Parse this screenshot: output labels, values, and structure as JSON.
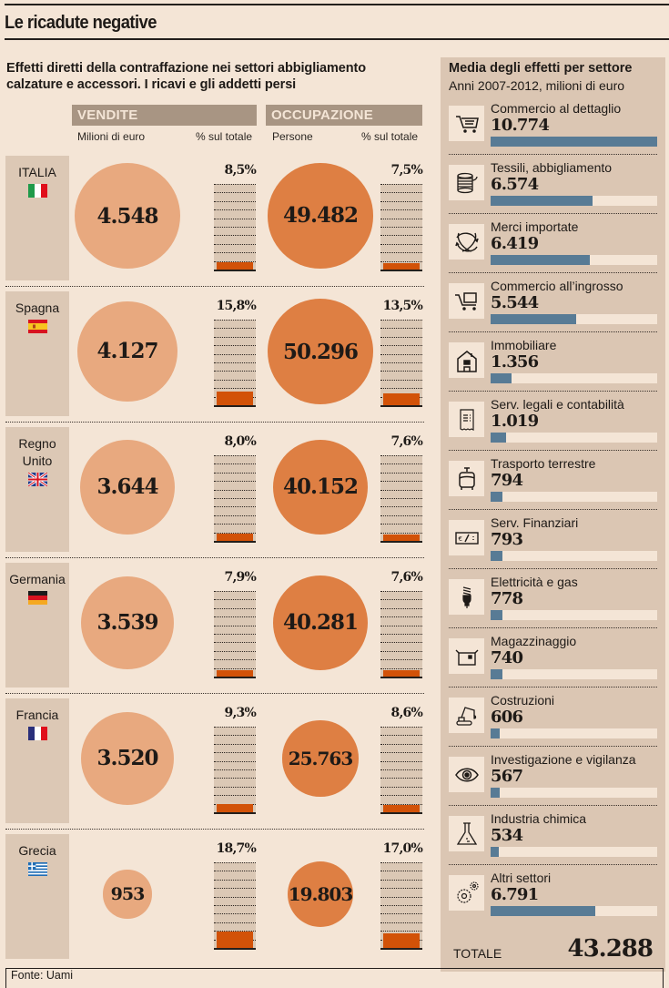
{
  "header": {
    "title": "Le ricadute negative",
    "subtitle": "Effetti diretti della contraffazione nei settori abbigliamento calzature e accessori. I ricavi e gli addetti persi"
  },
  "columns": {
    "sales_header": "VENDITE",
    "jobs_header": "OCCUPAZIONE",
    "sales_unit": "Milioni di euro",
    "sales_pct": "% sul totale",
    "jobs_unit": "Persone",
    "jobs_pct": "% sul totale"
  },
  "colors": {
    "background": "#f4e5d6",
    "panel": "#dbc6b3",
    "header_band": "#a89583",
    "sales_circle": "#e8a97f",
    "jobs_circle": "#de7f43",
    "pct_fill": "#d25208",
    "sector_bar": "#587b95"
  },
  "chart_data": [
    {
      "type": "bubble-table",
      "title": "Effetti diretti della contraffazione nei settori abbigliamento calzature e accessori. I ricavi e gli addetti persi",
      "countries": [
        {
          "name": "ITALIA",
          "flag": "italy-flag",
          "sales": 4548,
          "sales_label": "4.548",
          "sales_pct": 8.5,
          "sales_pct_label": "8,5%",
          "jobs": 49482,
          "jobs_label": "49.482",
          "jobs_pct": 7.5,
          "jobs_pct_label": "7,5%"
        },
        {
          "name": "Spagna",
          "flag": "spain-flag",
          "sales": 4127,
          "sales_label": "4.127",
          "sales_pct": 15.8,
          "sales_pct_label": "15,8%",
          "jobs": 50296,
          "jobs_label": "50.296",
          "jobs_pct": 13.5,
          "jobs_pct_label": "13,5%"
        },
        {
          "name": "Regno Unito",
          "flag": "uk-flag",
          "sales": 3644,
          "sales_label": "3.644",
          "sales_pct": 8.0,
          "sales_pct_label": "8,0%",
          "jobs": 40152,
          "jobs_label": "40.152",
          "jobs_pct": 7.6,
          "jobs_pct_label": "7,6%"
        },
        {
          "name": "Germania",
          "flag": "germany-flag",
          "sales": 3539,
          "sales_label": "3.539",
          "sales_pct": 7.9,
          "sales_pct_label": "7,9%",
          "jobs": 40281,
          "jobs_label": "40.281",
          "jobs_pct": 7.6,
          "jobs_pct_label": "7,6%"
        },
        {
          "name": "Francia",
          "flag": "france-flag",
          "sales": 3520,
          "sales_label": "3.520",
          "sales_pct": 9.3,
          "sales_pct_label": "9,3%",
          "jobs": 25763,
          "jobs_label": "25.763",
          "jobs_pct": 8.6,
          "jobs_pct_label": "8,6%"
        },
        {
          "name": "Grecia",
          "flag": "greece-flag",
          "sales": 953,
          "sales_label": "953",
          "sales_pct": 18.7,
          "sales_pct_label": "18,7%",
          "jobs": 19803,
          "jobs_label": "19.803",
          "jobs_pct": 17.0,
          "jobs_pct_label": "17,0%"
        }
      ],
      "pct_scale_max": 100
    },
    {
      "type": "bar",
      "orientation": "horizontal",
      "title": "Media degli effetti per settore",
      "subtitle": "Anni 2007-2012, milioni di euro",
      "categories": [
        "Commercio al dettaglio",
        "Tessili, abbigliamento",
        "Merci importate",
        "Commercio all’ingrosso",
        "Immobiliare",
        "Serv. legali e contabilità",
        "Trasporto terrestre",
        "Serv. Finanziari",
        "Elettricità e gas",
        "Magazzinaggio",
        "Costruzioni",
        "Investigazione e vigilanza",
        "Industria chimica",
        "Altri settori"
      ],
      "values": [
        10774,
        6574,
        6419,
        5544,
        1356,
        1019,
        794,
        793,
        778,
        740,
        606,
        567,
        534,
        6791
      ],
      "value_labels": [
        "10.774",
        "6.574",
        "6.419",
        "5.544",
        "1.356",
        "1.019",
        "794",
        "793",
        "778",
        "740",
        "606",
        "567",
        "534",
        "6.791"
      ],
      "icons": [
        "shopping-cart-icon",
        "thread-spool-icon",
        "exchange-arrows-icon",
        "wholesale-cart-icon",
        "house-icon",
        "receipt-icon",
        "bus-icon",
        "banknote-icon",
        "light-bulb-icon",
        "box-icon",
        "excavator-icon",
        "eye-icon",
        "flask-icon",
        "gears-icon"
      ],
      "xlim": [
        0,
        10774
      ],
      "total_label": "TOTALE",
      "total_value": "43.288"
    }
  ],
  "footer": {
    "source": "Fonte: Uami"
  }
}
